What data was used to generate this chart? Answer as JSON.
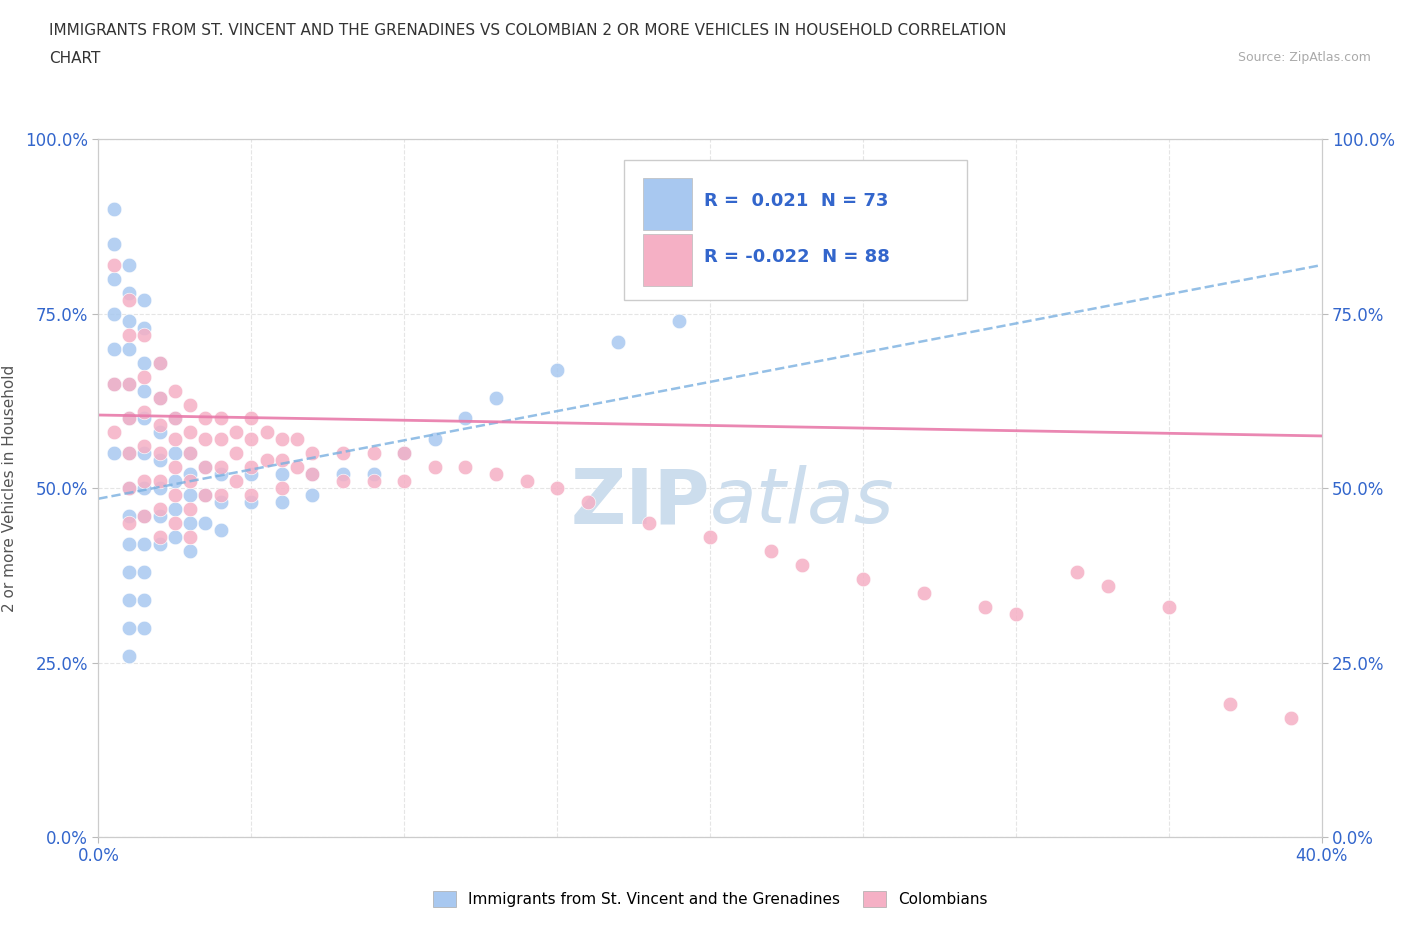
{
  "title_line1": "IMMIGRANTS FROM ST. VINCENT AND THE GRENADINES VS COLOMBIAN 2 OR MORE VEHICLES IN HOUSEHOLD CORRELATION",
  "title_line2": "CHART",
  "source_text": "Source: ZipAtlas.com",
  "ylabel": "2 or more Vehicles in Household",
  "xlim": [
    0.0,
    0.4
  ],
  "ylim": [
    0.0,
    1.0
  ],
  "xtick_positions": [
    0.0,
    0.4
  ],
  "xtick_labels": [
    "0.0%",
    "40.0%"
  ],
  "ytick_values": [
    0.0,
    0.25,
    0.5,
    0.75,
    1.0
  ],
  "ytick_labels": [
    "0.0%",
    "25.0%",
    "50.0%",
    "75.0%",
    "100.0%"
  ],
  "legend_blue_r": "0.021",
  "legend_blue_n": "73",
  "legend_pink_r": "-0.022",
  "legend_pink_n": "88",
  "legend_label_blue": "Immigrants from St. Vincent and the Grenadines",
  "legend_label_pink": "Colombians",
  "blue_color": "#a8c8f0",
  "pink_color": "#f5b0c5",
  "blue_line_color": "#7ab0e0",
  "pink_line_color": "#e87aaa",
  "watermark_color": "#ccdded",
  "grid_color": "#e5e5e5",
  "blue_scatter_x": [
    0.005,
    0.005,
    0.005,
    0.005,
    0.005,
    0.005,
    0.005,
    0.01,
    0.01,
    0.01,
    0.01,
    0.01,
    0.01,
    0.01,
    0.01,
    0.01,
    0.01,
    0.01,
    0.01,
    0.01,
    0.01,
    0.015,
    0.015,
    0.015,
    0.015,
    0.015,
    0.015,
    0.015,
    0.015,
    0.015,
    0.015,
    0.015,
    0.015,
    0.02,
    0.02,
    0.02,
    0.02,
    0.02,
    0.02,
    0.02,
    0.025,
    0.025,
    0.025,
    0.025,
    0.025,
    0.03,
    0.03,
    0.03,
    0.03,
    0.03,
    0.035,
    0.035,
    0.035,
    0.04,
    0.04,
    0.04,
    0.05,
    0.05,
    0.06,
    0.06,
    0.07,
    0.07,
    0.08,
    0.09,
    0.1,
    0.11,
    0.12,
    0.13,
    0.15,
    0.17,
    0.19,
    0.22
  ],
  "blue_scatter_y": [
    0.9,
    0.85,
    0.8,
    0.75,
    0.7,
    0.65,
    0.55,
    0.82,
    0.78,
    0.74,
    0.7,
    0.65,
    0.6,
    0.55,
    0.5,
    0.46,
    0.42,
    0.38,
    0.34,
    0.3,
    0.26,
    0.77,
    0.73,
    0.68,
    0.64,
    0.6,
    0.55,
    0.5,
    0.46,
    0.42,
    0.38,
    0.34,
    0.3,
    0.68,
    0.63,
    0.58,
    0.54,
    0.5,
    0.46,
    0.42,
    0.6,
    0.55,
    0.51,
    0.47,
    0.43,
    0.55,
    0.52,
    0.49,
    0.45,
    0.41,
    0.53,
    0.49,
    0.45,
    0.52,
    0.48,
    0.44,
    0.52,
    0.48,
    0.52,
    0.48,
    0.52,
    0.49,
    0.52,
    0.52,
    0.55,
    0.57,
    0.6,
    0.63,
    0.67,
    0.71,
    0.74,
    0.78
  ],
  "pink_scatter_x": [
    0.005,
    0.005,
    0.005,
    0.01,
    0.01,
    0.01,
    0.01,
    0.01,
    0.01,
    0.01,
    0.015,
    0.015,
    0.015,
    0.015,
    0.015,
    0.015,
    0.02,
    0.02,
    0.02,
    0.02,
    0.02,
    0.02,
    0.02,
    0.025,
    0.025,
    0.025,
    0.025,
    0.025,
    0.025,
    0.03,
    0.03,
    0.03,
    0.03,
    0.03,
    0.03,
    0.035,
    0.035,
    0.035,
    0.035,
    0.04,
    0.04,
    0.04,
    0.04,
    0.045,
    0.045,
    0.045,
    0.05,
    0.05,
    0.05,
    0.05,
    0.055,
    0.055,
    0.06,
    0.06,
    0.06,
    0.065,
    0.065,
    0.07,
    0.07,
    0.08,
    0.08,
    0.09,
    0.09,
    0.1,
    0.1,
    0.11,
    0.12,
    0.13,
    0.14,
    0.15,
    0.16,
    0.18,
    0.2,
    0.22,
    0.23,
    0.25,
    0.27,
    0.29,
    0.3,
    0.32,
    0.33,
    0.35,
    0.37,
    0.39
  ],
  "pink_scatter_y": [
    0.82,
    0.65,
    0.58,
    0.77,
    0.72,
    0.65,
    0.6,
    0.55,
    0.5,
    0.45,
    0.72,
    0.66,
    0.61,
    0.56,
    0.51,
    0.46,
    0.68,
    0.63,
    0.59,
    0.55,
    0.51,
    0.47,
    0.43,
    0.64,
    0.6,
    0.57,
    0.53,
    0.49,
    0.45,
    0.62,
    0.58,
    0.55,
    0.51,
    0.47,
    0.43,
    0.6,
    0.57,
    0.53,
    0.49,
    0.6,
    0.57,
    0.53,
    0.49,
    0.58,
    0.55,
    0.51,
    0.6,
    0.57,
    0.53,
    0.49,
    0.58,
    0.54,
    0.57,
    0.54,
    0.5,
    0.57,
    0.53,
    0.55,
    0.52,
    0.55,
    0.51,
    0.55,
    0.51,
    0.55,
    0.51,
    0.53,
    0.53,
    0.52,
    0.51,
    0.5,
    0.48,
    0.45,
    0.43,
    0.41,
    0.39,
    0.37,
    0.35,
    0.33,
    0.32,
    0.38,
    0.36,
    0.33,
    0.19,
    0.17
  ],
  "blue_line_x": [
    0.0,
    0.4
  ],
  "blue_line_y": [
    0.485,
    0.82
  ],
  "pink_line_x": [
    0.0,
    0.4
  ],
  "pink_line_y": [
    0.605,
    0.575
  ]
}
